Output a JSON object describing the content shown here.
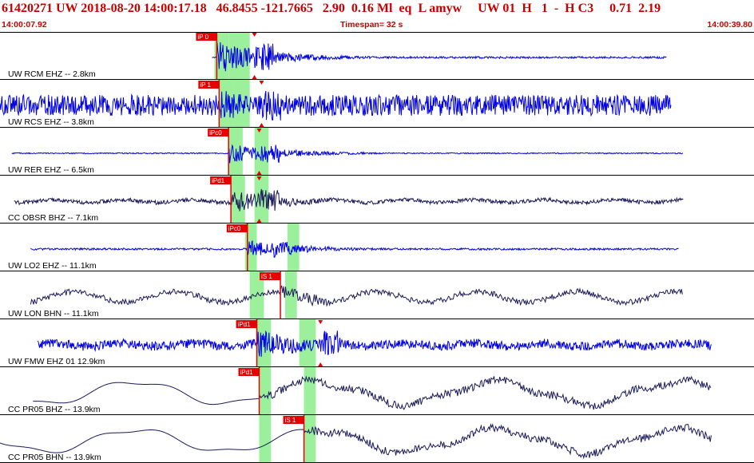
{
  "header": {
    "title": "61420271 UW 2018-08-20 14:00:17.18   46.8455 -121.7665   2.90  0.16 Ml  eq  L amyw     UW 01  H   1  -  H C3     0.71  2.19",
    "start_time": "14:00:07.92",
    "timespan": "Timespan=  32 s",
    "end_time": "14:00:39.80"
  },
  "colors": {
    "trace_blue": "#0000e6",
    "trace_dark": "#1a1a5a",
    "highlight_green": "#9cf09c",
    "pick_red": "#e60000",
    "title_red": "#c80000"
  },
  "chart_data": {
    "type": "line",
    "title": "61420271 UW 2018-08-20 14:00:17.18",
    "x_unit": "s",
    "x_start": "14:00:07.92",
    "x_end": "14:00:39.80",
    "timespan_s": 32,
    "traces": [
      {
        "label": "UW RCM EHZ -- 2.8km",
        "color": "blue",
        "pick": "iP 0",
        "pick_t": 9.2,
        "s_t": 10.8,
        "windows": [
          [
            9.1,
            9.7
          ],
          [
            9.7,
            10.6
          ]
        ],
        "data_start": 9.0,
        "data_end": 28.3,
        "pre_amp": 0.02,
        "post_amp": 0.05,
        "coda_amp": 0.85,
        "noise": "low"
      },
      {
        "label": "UW RCS EHZ -- 3.8km",
        "color": "blue",
        "pick": "iP 1",
        "pick_t": 9.3,
        "s_t": 11.1,
        "windows": [
          [
            9.3,
            9.9
          ],
          [
            9.9,
            10.6
          ]
        ],
        "data_start": 0.0,
        "data_end": 28.5,
        "pre_amp": 0.55,
        "post_amp": 0.55,
        "coda_amp": 0.9,
        "noise": "high"
      },
      {
        "label": "UW RER EHZ -- 6.5km",
        "color": "blue",
        "pick": "iPc0",
        "pick_t": 9.7,
        "s_t": 11.0,
        "windows": [
          [
            9.7,
            10.3
          ],
          [
            10.8,
            11.4
          ]
        ],
        "data_start": 0.5,
        "data_end": 29.0,
        "pre_amp": 0.03,
        "post_amp": 0.03,
        "coda_amp": 0.55,
        "noise": "low"
      },
      {
        "label": "CC OBSR BHZ -- 7.1km",
        "color": "dark",
        "pick": "iPd1",
        "pick_t": 9.8,
        "s_t": 11.0,
        "windows": [
          [
            9.8,
            10.4
          ],
          [
            10.8,
            11.4
          ]
        ],
        "data_start": 0.6,
        "data_end": 29.0,
        "pre_amp": 0.12,
        "post_amp": 0.12,
        "coda_amp": 0.75,
        "noise": "mid"
      },
      {
        "label": "UW LO2 EHZ -- 11.1km",
        "color": "blue",
        "pick": "iPc0",
        "pick_t": 10.5,
        "s_t": null,
        "windows": [
          [
            10.4,
            10.9
          ],
          [
            12.2,
            12.7
          ]
        ],
        "data_start": 1.3,
        "data_end": 28.8,
        "pre_amp": 0.05,
        "post_amp": 0.05,
        "coda_amp": 0.5,
        "noise": "low"
      },
      {
        "label": "UW LON BHN -- 11.1km",
        "color": "dark",
        "pick": "iS 1",
        "pick_t": 11.9,
        "s_t": null,
        "windows": [
          [
            10.6,
            11.2
          ],
          [
            12.1,
            12.6
          ]
        ],
        "data_start": 1.3,
        "data_end": 29.0,
        "pre_amp": 0.2,
        "post_amp": 0.2,
        "coda_amp": 0.55,
        "noise": "wave"
      },
      {
        "label": "UW FMW EHZ 01 12.9km",
        "color": "blue",
        "pick": "iPd1",
        "pick_t": 10.9,
        "s_t": 13.6,
        "windows": [
          [
            10.9,
            11.5
          ],
          [
            12.7,
            13.4
          ]
        ],
        "data_start": 1.6,
        "data_end": 30.2,
        "pre_amp": 0.28,
        "post_amp": 0.28,
        "coda_amp": 0.9,
        "noise": "mid"
      },
      {
        "label": "CC PR05 BHZ -- 13.9km",
        "color": "dark",
        "pick": "iPd1",
        "pick_t": 11.0,
        "s_t": null,
        "windows": [
          [
            11.0,
            11.5
          ],
          [
            12.9,
            13.4
          ]
        ],
        "data_start": 1.4,
        "data_end": 30.2,
        "pre_amp": 0.65,
        "post_amp": 0.65,
        "coda_amp": 0.35,
        "noise": "long"
      },
      {
        "label": "CC PR05 BHN -- 13.9km",
        "color": "dark",
        "pick": "iS 1",
        "pick_t": 12.9,
        "s_t": null,
        "windows": [
          [
            11.0,
            11.5
          ],
          [
            12.9,
            13.4
          ]
        ],
        "data_start": 0.0,
        "data_end": 30.2,
        "pre_amp": 0.65,
        "post_amp": 0.65,
        "coda_amp": 0.35,
        "noise": "long"
      }
    ]
  }
}
